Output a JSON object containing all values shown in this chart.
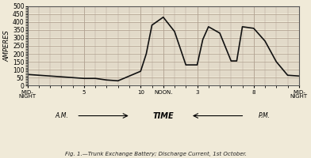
{
  "title": "Fig. 1.—Trunk Exchange Battery; Discharge Current, 1st October.",
  "ylabel": "AMPERES",
  "xlabel_center": "TIME",
  "xlabel_left": "A.M.",
  "xlabel_right": "P.M.",
  "bg_color": "#f0ead8",
  "grid_color": "#b0a090",
  "line_color": "#111111",
  "ylim": [
    0,
    500
  ],
  "yticks": [
    0,
    50,
    100,
    150,
    200,
    250,
    300,
    350,
    400,
    450,
    500
  ],
  "time_points": [
    0,
    1,
    2,
    3,
    4,
    5,
    6,
    7,
    8,
    9,
    10,
    10.5,
    11,
    12,
    13,
    14,
    15,
    15.5,
    16,
    17,
    18,
    18.5,
    19,
    20,
    21,
    22,
    23,
    24
  ],
  "amperes": [
    70,
    65,
    60,
    55,
    50,
    45,
    45,
    35,
    30,
    60,
    90,
    200,
    380,
    430,
    340,
    130,
    130,
    290,
    370,
    330,
    155,
    155,
    370,
    360,
    280,
    150,
    65,
    60
  ],
  "xtick_positions": [
    0,
    5,
    10,
    12,
    15,
    20,
    24
  ],
  "xtick_labels": [
    "MID-\nNIGHT",
    "5",
    "10",
    "NOON.",
    "3",
    "8",
    "MID-\nNIGHT"
  ]
}
